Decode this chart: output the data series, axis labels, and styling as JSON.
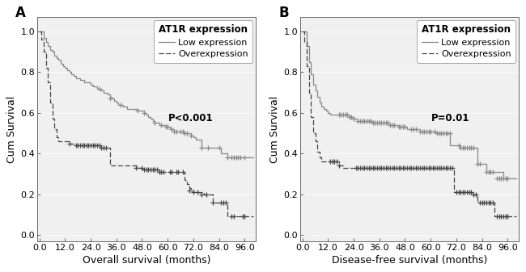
{
  "panel_A": {
    "title_label": "A",
    "xlabel": "Overall survival (months)",
    "ylabel": "Cum Survival",
    "pvalue": "P<0.001",
    "legend_title": "AT1R expression",
    "legend_low": "Low expression",
    "legend_over": "Overexpression",
    "xticks": [
      0.0,
      12.0,
      24.0,
      36.0,
      48.0,
      60.0,
      72.0,
      84.0,
      96.0
    ],
    "yticks": [
      0.0,
      0.2,
      0.4,
      0.6,
      0.8,
      1.0
    ],
    "xlim": [
      -1,
      101
    ],
    "ylim": [
      -0.03,
      1.07
    ],
    "low_x": [
      0,
      1,
      2,
      3,
      4,
      5,
      6,
      7,
      8,
      9,
      10,
      11,
      12,
      13,
      14,
      15,
      16,
      17,
      18,
      19,
      20,
      21,
      22,
      23,
      24,
      25,
      26,
      27,
      28,
      29,
      30,
      31,
      32,
      33,
      34,
      35,
      36,
      37,
      38,
      39,
      40,
      41,
      42,
      43,
      44,
      45,
      46,
      47,
      48,
      49,
      50,
      51,
      52,
      53,
      54,
      55,
      56,
      57,
      58,
      59,
      60,
      61,
      62,
      63,
      64,
      65,
      66,
      67,
      68,
      69,
      70,
      71,
      72,
      73,
      74,
      75,
      76,
      77,
      78,
      79,
      80,
      81,
      82,
      83,
      84,
      85,
      86,
      87,
      88,
      89,
      90,
      91,
      92,
      93,
      94,
      95,
      96,
      97,
      98,
      99,
      100
    ],
    "low_y": [
      1.0,
      1.0,
      0.97,
      0.95,
      0.93,
      0.91,
      0.9,
      0.88,
      0.87,
      0.86,
      0.84,
      0.83,
      0.82,
      0.81,
      0.8,
      0.79,
      0.78,
      0.77,
      0.77,
      0.76,
      0.76,
      0.75,
      0.75,
      0.75,
      0.74,
      0.73,
      0.73,
      0.72,
      0.72,
      0.71,
      0.7,
      0.7,
      0.69,
      0.68,
      0.67,
      0.66,
      0.65,
      0.64,
      0.64,
      0.63,
      0.63,
      0.62,
      0.62,
      0.62,
      0.62,
      0.62,
      0.61,
      0.61,
      0.61,
      0.6,
      0.59,
      0.58,
      0.57,
      0.56,
      0.55,
      0.55,
      0.54,
      0.54,
      0.54,
      0.53,
      0.53,
      0.52,
      0.52,
      0.51,
      0.51,
      0.51,
      0.51,
      0.51,
      0.5,
      0.5,
      0.5,
      0.49,
      0.48,
      0.47,
      0.47,
      0.47,
      0.43,
      0.43,
      0.43,
      0.43,
      0.43,
      0.43,
      0.43,
      0.43,
      0.43,
      0.4,
      0.4,
      0.4,
      0.38,
      0.38,
      0.38,
      0.38,
      0.38,
      0.38,
      0.38,
      0.38,
      0.38,
      0.38,
      0.38,
      0.38,
      0.38
    ],
    "over_x": [
      0,
      1,
      2,
      3,
      4,
      5,
      6,
      7,
      8,
      9,
      10,
      11,
      12,
      13,
      14,
      15,
      16,
      17,
      18,
      19,
      20,
      21,
      22,
      23,
      24,
      25,
      26,
      27,
      28,
      29,
      30,
      31,
      32,
      33,
      34,
      35,
      36,
      37,
      38,
      39,
      40,
      41,
      42,
      43,
      44,
      45,
      46,
      47,
      48,
      49,
      50,
      51,
      52,
      53,
      54,
      55,
      56,
      57,
      58,
      59,
      60,
      61,
      62,
      63,
      64,
      65,
      66,
      67,
      68,
      69,
      70,
      71,
      72,
      73,
      74,
      75,
      76,
      77,
      78,
      79,
      80,
      81,
      82,
      83,
      84,
      85,
      86,
      87,
      88,
      89,
      90,
      91,
      92,
      93,
      94,
      95,
      96,
      97,
      98,
      99,
      100
    ],
    "over_y": [
      1.0,
      0.96,
      0.9,
      0.82,
      0.75,
      0.65,
      0.57,
      0.52,
      0.48,
      0.46,
      0.46,
      0.46,
      0.46,
      0.46,
      0.45,
      0.45,
      0.44,
      0.44,
      0.44,
      0.44,
      0.44,
      0.44,
      0.44,
      0.44,
      0.44,
      0.44,
      0.44,
      0.44,
      0.44,
      0.43,
      0.43,
      0.43,
      0.43,
      0.34,
      0.34,
      0.34,
      0.34,
      0.34,
      0.34,
      0.34,
      0.34,
      0.34,
      0.34,
      0.34,
      0.34,
      0.34,
      0.33,
      0.33,
      0.33,
      0.32,
      0.32,
      0.32,
      0.32,
      0.32,
      0.32,
      0.32,
      0.31,
      0.31,
      0.31,
      0.31,
      0.31,
      0.31,
      0.31,
      0.31,
      0.31,
      0.31,
      0.31,
      0.31,
      0.27,
      0.25,
      0.23,
      0.22,
      0.21,
      0.21,
      0.21,
      0.21,
      0.21,
      0.2,
      0.2,
      0.2,
      0.2,
      0.16,
      0.16,
      0.16,
      0.16,
      0.16,
      0.16,
      0.16,
      0.09,
      0.09,
      0.09,
      0.09,
      0.09,
      0.09,
      0.09,
      0.09,
      0.09,
      0.09,
      0.09,
      0.09,
      0.09
    ],
    "low_censor_x": [
      28,
      33,
      38,
      46,
      49,
      54,
      57,
      59,
      60,
      62,
      63,
      64,
      66,
      67,
      68,
      69,
      71,
      76,
      79,
      84,
      88,
      90,
      91,
      92,
      93,
      94,
      96
    ],
    "low_censor_y": [
      0.72,
      0.67,
      0.64,
      0.61,
      0.6,
      0.55,
      0.54,
      0.53,
      0.53,
      0.52,
      0.51,
      0.51,
      0.51,
      0.51,
      0.5,
      0.5,
      0.49,
      0.43,
      0.43,
      0.43,
      0.38,
      0.38,
      0.38,
      0.38,
      0.38,
      0.38,
      0.38
    ],
    "over_censor_x": [
      14,
      17,
      18,
      19,
      20,
      21,
      22,
      23,
      24,
      25,
      26,
      27,
      28,
      29,
      30,
      31,
      45,
      48,
      49,
      50,
      51,
      52,
      53,
      54,
      55,
      56,
      57,
      58,
      61,
      62,
      64,
      65,
      67,
      70,
      72,
      74,
      76,
      78,
      81,
      85,
      86,
      87,
      90,
      91,
      95,
      96
    ],
    "over_censor_y": [
      0.45,
      0.44,
      0.44,
      0.44,
      0.44,
      0.44,
      0.44,
      0.44,
      0.44,
      0.44,
      0.44,
      0.44,
      0.44,
      0.43,
      0.43,
      0.43,
      0.33,
      0.33,
      0.32,
      0.32,
      0.32,
      0.32,
      0.32,
      0.32,
      0.32,
      0.31,
      0.31,
      0.31,
      0.31,
      0.31,
      0.31,
      0.31,
      0.31,
      0.22,
      0.21,
      0.21,
      0.2,
      0.2,
      0.16,
      0.16,
      0.16,
      0.16,
      0.09,
      0.09,
      0.09,
      0.09
    ]
  },
  "panel_B": {
    "title_label": "B",
    "xlabel": "Disease-free survival (months)",
    "ylabel": "Cum Survival",
    "pvalue": "P=0.01",
    "legend_title": "AT1R expression",
    "legend_low": "Low expression",
    "legend_over": "Overexpression",
    "xticks": [
      0.0,
      12.0,
      24.0,
      36.0,
      48.0,
      60.0,
      72.0,
      84.0,
      96.0
    ],
    "yticks": [
      0.0,
      0.2,
      0.4,
      0.6,
      0.8,
      1.0
    ],
    "xlim": [
      -1,
      101
    ],
    "ylim": [
      -0.03,
      1.07
    ],
    "low_x": [
      0,
      1,
      2,
      3,
      4,
      5,
      6,
      7,
      8,
      9,
      10,
      11,
      12,
      13,
      14,
      15,
      16,
      17,
      18,
      19,
      20,
      21,
      22,
      23,
      24,
      25,
      26,
      27,
      28,
      29,
      30,
      31,
      32,
      33,
      34,
      35,
      36,
      37,
      38,
      39,
      40,
      41,
      42,
      43,
      44,
      45,
      46,
      47,
      48,
      49,
      50,
      51,
      52,
      53,
      54,
      55,
      56,
      57,
      58,
      59,
      60,
      61,
      62,
      63,
      64,
      65,
      66,
      67,
      68,
      69,
      70,
      71,
      72,
      73,
      74,
      75,
      76,
      77,
      78,
      79,
      80,
      81,
      82,
      83,
      84,
      85,
      86,
      87,
      88,
      89,
      90,
      91,
      92,
      93,
      94,
      95,
      96,
      97,
      98,
      99,
      100
    ],
    "low_y": [
      1.0,
      1.0,
      0.93,
      0.85,
      0.79,
      0.74,
      0.71,
      0.68,
      0.65,
      0.63,
      0.62,
      0.61,
      0.6,
      0.59,
      0.59,
      0.59,
      0.59,
      0.59,
      0.59,
      0.59,
      0.59,
      0.59,
      0.58,
      0.58,
      0.57,
      0.57,
      0.56,
      0.56,
      0.56,
      0.56,
      0.56,
      0.56,
      0.56,
      0.55,
      0.55,
      0.55,
      0.55,
      0.55,
      0.55,
      0.55,
      0.55,
      0.54,
      0.54,
      0.54,
      0.54,
      0.53,
      0.53,
      0.53,
      0.53,
      0.52,
      0.52,
      0.52,
      0.52,
      0.52,
      0.52,
      0.51,
      0.51,
      0.51,
      0.51,
      0.51,
      0.51,
      0.51,
      0.51,
      0.5,
      0.5,
      0.5,
      0.5,
      0.5,
      0.5,
      0.44,
      0.44,
      0.44,
      0.44,
      0.44,
      0.43,
      0.43,
      0.43,
      0.43,
      0.43,
      0.43,
      0.43,
      0.43,
      0.35,
      0.35,
      0.35,
      0.35,
      0.31,
      0.31,
      0.31,
      0.31,
      0.31,
      0.31,
      0.31,
      0.31,
      0.28,
      0.28,
      0.28,
      0.28,
      0.28,
      0.28,
      0.28
    ],
    "over_x": [
      0,
      1,
      2,
      3,
      4,
      5,
      6,
      7,
      8,
      9,
      10,
      11,
      12,
      13,
      14,
      15,
      16,
      17,
      18,
      19,
      20,
      21,
      22,
      23,
      24,
      25,
      26,
      27,
      28,
      29,
      30,
      31,
      32,
      33,
      34,
      35,
      36,
      37,
      38,
      39,
      40,
      41,
      42,
      43,
      44,
      45,
      46,
      47,
      48,
      49,
      50,
      51,
      52,
      53,
      54,
      55,
      56,
      57,
      58,
      59,
      60,
      61,
      62,
      63,
      64,
      65,
      66,
      67,
      68,
      69,
      70,
      71,
      72,
      73,
      74,
      75,
      76,
      77,
      78,
      79,
      80,
      81,
      82,
      83,
      84,
      85,
      86,
      87,
      88,
      89,
      90,
      91,
      92,
      93,
      94,
      95,
      96,
      97,
      98,
      99,
      100
    ],
    "over_y": [
      1.0,
      0.95,
      0.83,
      0.7,
      0.58,
      0.5,
      0.46,
      0.41,
      0.38,
      0.36,
      0.36,
      0.36,
      0.36,
      0.36,
      0.36,
      0.36,
      0.36,
      0.34,
      0.34,
      0.33,
      0.33,
      0.33,
      0.33,
      0.33,
      0.33,
      0.33,
      0.33,
      0.33,
      0.33,
      0.33,
      0.33,
      0.33,
      0.33,
      0.33,
      0.33,
      0.33,
      0.33,
      0.33,
      0.33,
      0.33,
      0.33,
      0.33,
      0.33,
      0.33,
      0.33,
      0.33,
      0.33,
      0.33,
      0.33,
      0.33,
      0.33,
      0.33,
      0.33,
      0.33,
      0.33,
      0.33,
      0.33,
      0.33,
      0.33,
      0.33,
      0.33,
      0.33,
      0.33,
      0.33,
      0.33,
      0.33,
      0.33,
      0.33,
      0.33,
      0.33,
      0.33,
      0.21,
      0.21,
      0.21,
      0.21,
      0.21,
      0.21,
      0.21,
      0.21,
      0.21,
      0.2,
      0.2,
      0.16,
      0.16,
      0.16,
      0.16,
      0.16,
      0.16,
      0.16,
      0.16,
      0.09,
      0.09,
      0.09,
      0.09,
      0.09,
      0.09,
      0.09,
      0.09,
      0.09,
      0.09,
      0.09
    ],
    "low_censor_x": [
      17,
      18,
      19,
      20,
      21,
      22,
      23,
      24,
      26,
      27,
      28,
      29,
      30,
      31,
      32,
      33,
      34,
      35,
      36,
      37,
      38,
      39,
      40,
      41,
      42,
      43,
      45,
      46,
      47,
      48,
      51,
      52,
      53,
      55,
      56,
      57,
      58,
      59,
      60,
      62,
      63,
      64,
      65,
      66,
      67,
      68,
      69,
      73,
      74,
      75,
      76,
      77,
      78,
      79,
      80,
      82,
      83,
      86,
      87,
      88,
      89,
      91,
      92,
      93,
      94,
      95,
      96
    ],
    "low_censor_y": [
      0.59,
      0.59,
      0.59,
      0.59,
      0.59,
      0.58,
      0.58,
      0.57,
      0.56,
      0.56,
      0.56,
      0.56,
      0.56,
      0.56,
      0.56,
      0.55,
      0.55,
      0.55,
      0.55,
      0.55,
      0.55,
      0.55,
      0.55,
      0.54,
      0.54,
      0.54,
      0.53,
      0.53,
      0.53,
      0.53,
      0.52,
      0.52,
      0.52,
      0.51,
      0.51,
      0.51,
      0.51,
      0.51,
      0.51,
      0.51,
      0.5,
      0.5,
      0.5,
      0.5,
      0.5,
      0.5,
      0.5,
      0.44,
      0.43,
      0.43,
      0.43,
      0.43,
      0.43,
      0.43,
      0.43,
      0.35,
      0.35,
      0.31,
      0.31,
      0.31,
      0.31,
      0.28,
      0.28,
      0.28,
      0.28,
      0.28,
      0.28
    ],
    "over_censor_x": [
      13,
      14,
      15,
      16,
      17,
      25,
      26,
      27,
      28,
      29,
      30,
      31,
      32,
      33,
      34,
      35,
      36,
      37,
      38,
      39,
      40,
      41,
      42,
      43,
      44,
      45,
      46,
      47,
      48,
      49,
      50,
      51,
      52,
      53,
      54,
      55,
      56,
      57,
      58,
      59,
      60,
      61,
      62,
      63,
      64,
      65,
      66,
      67,
      68,
      69,
      70,
      72,
      73,
      74,
      75,
      76,
      77,
      78,
      79,
      80,
      81,
      83,
      84,
      85,
      86,
      87,
      88,
      89,
      91,
      92,
      93,
      94,
      95,
      96
    ],
    "over_censor_y": [
      0.36,
      0.36,
      0.36,
      0.36,
      0.34,
      0.33,
      0.33,
      0.33,
      0.33,
      0.33,
      0.33,
      0.33,
      0.33,
      0.33,
      0.33,
      0.33,
      0.33,
      0.33,
      0.33,
      0.33,
      0.33,
      0.33,
      0.33,
      0.33,
      0.33,
      0.33,
      0.33,
      0.33,
      0.33,
      0.33,
      0.33,
      0.33,
      0.33,
      0.33,
      0.33,
      0.33,
      0.33,
      0.33,
      0.33,
      0.33,
      0.33,
      0.33,
      0.33,
      0.33,
      0.33,
      0.33,
      0.33,
      0.33,
      0.33,
      0.33,
      0.33,
      0.21,
      0.21,
      0.21,
      0.21,
      0.21,
      0.21,
      0.21,
      0.21,
      0.2,
      0.2,
      0.16,
      0.16,
      0.16,
      0.16,
      0.16,
      0.16,
      0.16,
      0.09,
      0.09,
      0.09,
      0.09,
      0.09,
      0.09
    ]
  },
  "line_color_low": "#888888",
  "line_color_over": "#444444",
  "bg_color": "#ffffff",
  "axes_bg": "#f0f0f0",
  "font_family": "DejaVu Sans",
  "tick_fontsize": 8,
  "label_fontsize": 9,
  "panel_label_fontsize": 12,
  "pvalue_fontsize": 8.5,
  "legend_title_fontsize": 8.5,
  "legend_fontsize": 8,
  "linewidth": 0.9,
  "censor_markersize": 4.5,
  "censor_markeredgewidth": 0.9
}
